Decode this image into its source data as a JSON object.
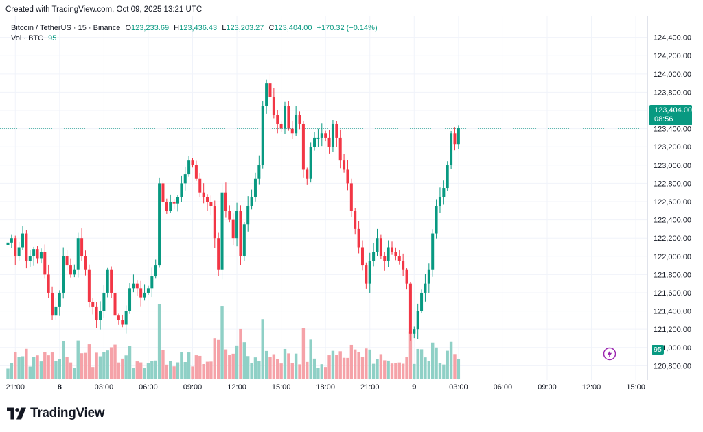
{
  "header": {
    "created_text": "Created with TradingView.com, Oct 09, 2025 13:21 UTC"
  },
  "legend": {
    "symbol": "Bitcoin / TetherUS · 15 · Binance",
    "open_label": "O",
    "open": "123,233.69",
    "high_label": "H",
    "high": "123,436.43",
    "low_label": "L",
    "low": "123,203.27",
    "close_label": "C",
    "close": "123,404.00",
    "change": "+170.32 (+0.14%)",
    "volume_label": "Vol · BTC",
    "volume_value": "95"
  },
  "price_tag": {
    "price": "123,404.00",
    "countdown": "08:56"
  },
  "volume_tag": "95",
  "brand": {
    "name": "TradingView"
  },
  "colors": {
    "up": "#089981",
    "down": "#f23645",
    "up_volume": "#8fd0c6",
    "down_volume": "#f5a2a8",
    "grid": "#f0f3fa",
    "text": "#131722"
  },
  "icons": {
    "brand_logo": "tradingview-logo-icon",
    "alert": "lightning-bolt-icon"
  },
  "chart_data": {
    "type": "candlestick",
    "title": "",
    "xlabel": "",
    "ylabel": "",
    "ylim": [
      120750,
      124450
    ],
    "grid": true,
    "y_ticks": [
      120800,
      121000,
      121200,
      121400,
      121600,
      121800,
      122000,
      122200,
      122400,
      122600,
      122800,
      123000,
      123200,
      123400,
      123600,
      123800,
      124000,
      124200,
      124400
    ],
    "y_tick_labels": [
      "120,800.00",
      "121,000.00",
      "121,200.00",
      "121,400.00",
      "121,600.00",
      "121,800.00",
      "122,000.00",
      "122,200.00",
      "122,400.00",
      "122,600.00",
      "122,800.00",
      "123,000.00",
      "123,200.00",
      "123,400.00",
      "123,600.00",
      "123,800.00",
      "124,000.00",
      "124,200.00",
      "124,400.00"
    ],
    "x_ticks": [
      {
        "label": "21:00",
        "index": 2
      },
      {
        "label": "8",
        "index": 14
      },
      {
        "label": "03:00",
        "index": 26
      },
      {
        "label": "06:00",
        "index": 38
      },
      {
        "label": "09:00",
        "index": 50
      },
      {
        "label": "12:00",
        "index": 62
      },
      {
        "label": "15:00",
        "index": 74
      },
      {
        "label": "18:00",
        "index": 86
      },
      {
        "label": "21:00",
        "index": 98
      },
      {
        "label": "9",
        "index": 110
      },
      {
        "label": "03:00",
        "index": 122
      },
      {
        "label": "06:00",
        "index": 134
      },
      {
        "label": "09:00",
        "index": 146
      },
      {
        "label": "12:00",
        "index": 158
      },
      {
        "label": "15:00",
        "index": 170
      }
    ],
    "bold_x_ticks": [
      "8",
      "9"
    ],
    "interval": "15",
    "volume_max": 2000,
    "closes": [
      122150,
      122200,
      122000,
      122100,
      122250,
      121950,
      122000,
      122080,
      121980,
      122050,
      121800,
      121600,
      121350,
      121450,
      121600,
      122000,
      121900,
      121800,
      121850,
      122200,
      122000,
      121850,
      121500,
      121450,
      121300,
      121400,
      121600,
      121850,
      121600,
      121350,
      121300,
      121250,
      121400,
      121650,
      121700,
      121650,
      121550,
      121600,
      121650,
      121780,
      121900,
      122800,
      122600,
      122500,
      122600,
      122580,
      122650,
      122800,
      122900,
      123050,
      123000,
      122850,
      122700,
      122650,
      122600,
      122550,
      122200,
      121850,
      122700,
      122500,
      122400,
      122200,
      122500,
      122000,
      122350,
      122550,
      122650,
      122850,
      123000,
      123650,
      123900,
      123750,
      123550,
      123450,
      123400,
      123650,
      123400,
      123350,
      123550,
      123450,
      122950,
      122850,
      123200,
      123300,
      123300,
      123350,
      123300,
      123200,
      123450,
      123300,
      123050,
      122950,
      122800,
      122500,
      122300,
      122100,
      121900,
      121700,
      121950,
      122050,
      122200,
      122000,
      121950,
      122100,
      122050,
      122000,
      121950,
      121850,
      121700,
      121150,
      121200,
      121400,
      121600,
      121700,
      121850,
      122250,
      122550,
      122650,
      122750,
      123000,
      123350,
      123230,
      123404
    ]
  }
}
